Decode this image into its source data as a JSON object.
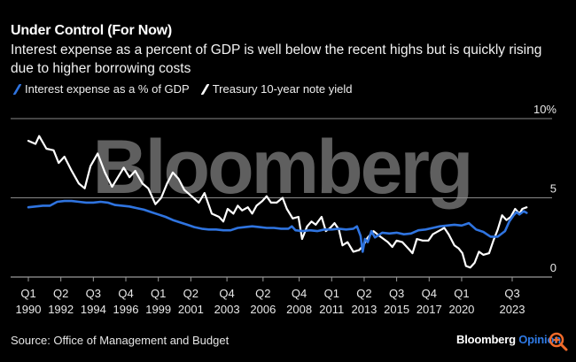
{
  "header": {
    "title": "Under Control (For Now)",
    "subtitle": "Interest expense as a percent of GDP is well below the recent highs but is quickly rising due to higher borrowing costs"
  },
  "legend": [
    {
      "label": "Interest expense as a % of GDP",
      "color": "#2f74e0"
    },
    {
      "label": "Treasury 10-year note yield",
      "color": "#ffffff"
    }
  ],
  "footer": {
    "source": "Source: Office of Management and Budget",
    "brand": "Bloomberg",
    "brand_accent": "Opinion",
    "zoom_icon": "zoom-in-icon"
  },
  "watermark": "Bloomberg",
  "chart_data": {
    "type": "line",
    "title": "Under Control (For Now)",
    "xlabel": "",
    "ylabel": "",
    "ylim": [
      0,
      10
    ],
    "xlim": [
      1990.0,
      2024.75
    ],
    "grid": true,
    "legend_position": "top-left",
    "y_ticks": [
      {
        "value": 0,
        "label": "0"
      },
      {
        "value": 5,
        "label": "5"
      },
      {
        "value": 10,
        "label": "10%"
      }
    ],
    "x_ticks": [
      {
        "value": 1990.0,
        "q": "Q1",
        "year": "1990"
      },
      {
        "value": 1992.25,
        "q": "Q2",
        "year": "1992"
      },
      {
        "value": 1994.5,
        "q": "Q3",
        "year": "1994"
      },
      {
        "value": 1996.75,
        "q": "Q4",
        "year": "1996"
      },
      {
        "value": 1999.0,
        "q": "Q1",
        "year": "1999"
      },
      {
        "value": 2001.25,
        "q": "Q2",
        "year": "2001"
      },
      {
        "value": 2003.75,
        "q": "Q4",
        "year": "2003"
      },
      {
        "value": 2006.25,
        "q": "Q2",
        "year": "2006"
      },
      {
        "value": 2008.75,
        "q": "Q4",
        "year": "2008"
      },
      {
        "value": 2011.0,
        "q": "Q1",
        "year": "2011"
      },
      {
        "value": 2013.25,
        "q": "Q2",
        "year": "2013"
      },
      {
        "value": 2015.5,
        "q": "Q3",
        "year": "2015"
      },
      {
        "value": 2017.75,
        "q": "Q4",
        "year": "2017"
      },
      {
        "value": 2020.0,
        "q": "Q1",
        "year": "2020"
      },
      {
        "value": 2023.5,
        "q": "Q3",
        "year": "2023"
      }
    ],
    "series": [
      {
        "name": "Interest expense as a % of GDP",
        "color": "#2f74e0",
        "points": [
          [
            1990.0,
            4.4
          ],
          [
            1990.5,
            4.45
          ],
          [
            1991.0,
            4.5
          ],
          [
            1991.5,
            4.5
          ],
          [
            1992.0,
            4.75
          ],
          [
            1992.5,
            4.8
          ],
          [
            1993.0,
            4.8
          ],
          [
            1993.5,
            4.75
          ],
          [
            1994.0,
            4.7
          ],
          [
            1994.5,
            4.7
          ],
          [
            1995.0,
            4.75
          ],
          [
            1995.5,
            4.7
          ],
          [
            1996.0,
            4.55
          ],
          [
            1996.5,
            4.5
          ],
          [
            1997.0,
            4.45
          ],
          [
            1997.5,
            4.35
          ],
          [
            1998.0,
            4.25
          ],
          [
            1998.5,
            4.1
          ],
          [
            1999.0,
            3.95
          ],
          [
            1999.5,
            3.8
          ],
          [
            2000.0,
            3.6
          ],
          [
            2000.5,
            3.45
          ],
          [
            2001.0,
            3.3
          ],
          [
            2001.5,
            3.15
          ],
          [
            2002.0,
            3.05
          ],
          [
            2002.5,
            3.0
          ],
          [
            2003.0,
            3.0
          ],
          [
            2003.5,
            2.95
          ],
          [
            2004.0,
            2.95
          ],
          [
            2004.5,
            3.1
          ],
          [
            2005.0,
            3.15
          ],
          [
            2005.5,
            3.2
          ],
          [
            2006.0,
            3.15
          ],
          [
            2006.5,
            3.1
          ],
          [
            2007.0,
            3.1
          ],
          [
            2007.5,
            3.05
          ],
          [
            2008.0,
            3.05
          ],
          [
            2008.25,
            3.2
          ],
          [
            2008.5,
            2.95
          ],
          [
            2009.0,
            2.9
          ],
          [
            2009.5,
            2.95
          ],
          [
            2010.0,
            2.9
          ],
          [
            2010.5,
            3.0
          ],
          [
            2011.0,
            3.0
          ],
          [
            2011.5,
            3.05
          ],
          [
            2012.0,
            3.0
          ],
          [
            2012.5,
            3.05
          ],
          [
            2012.75,
            3.2
          ],
          [
            2013.0,
            2.6
          ],
          [
            2013.15,
            1.6
          ],
          [
            2013.3,
            2.4
          ],
          [
            2013.5,
            2.2
          ],
          [
            2013.75,
            2.9
          ],
          [
            2014.0,
            2.5
          ],
          [
            2014.5,
            2.8
          ],
          [
            2015.0,
            2.75
          ],
          [
            2015.5,
            2.8
          ],
          [
            2016.0,
            2.7
          ],
          [
            2016.5,
            2.75
          ],
          [
            2017.0,
            2.95
          ],
          [
            2017.5,
            3.0
          ],
          [
            2018.0,
            3.1
          ],
          [
            2018.5,
            3.2
          ],
          [
            2019.0,
            3.25
          ],
          [
            2019.5,
            3.3
          ],
          [
            2020.0,
            3.25
          ],
          [
            2020.5,
            3.4
          ],
          [
            2021.0,
            3.0
          ],
          [
            2021.5,
            2.85
          ],
          [
            2022.0,
            2.55
          ],
          [
            2022.5,
            2.55
          ],
          [
            2023.0,
            2.9
          ],
          [
            2023.3,
            3.5
          ],
          [
            2023.6,
            3.9
          ],
          [
            2023.8,
            4.1
          ],
          [
            2024.0,
            3.95
          ],
          [
            2024.3,
            4.15
          ],
          [
            2024.5,
            4.05
          ]
        ]
      },
      {
        "name": "Treasury 10-year note yield",
        "color": "#ffffff",
        "points": [
          [
            1990.0,
            8.6
          ],
          [
            1990.5,
            8.4
          ],
          [
            1990.75,
            8.9
          ],
          [
            1991.25,
            8.1
          ],
          [
            1991.75,
            8.0
          ],
          [
            1992.1,
            7.2
          ],
          [
            1992.5,
            7.6
          ],
          [
            1993.0,
            6.7
          ],
          [
            1993.5,
            5.9
          ],
          [
            1993.9,
            5.6
          ],
          [
            1994.3,
            7.0
          ],
          [
            1994.8,
            7.8
          ],
          [
            1995.3,
            6.6
          ],
          [
            1995.8,
            5.7
          ],
          [
            1996.2,
            6.3
          ],
          [
            1996.6,
            6.9
          ],
          [
            1997.0,
            6.3
          ],
          [
            1997.4,
            6.7
          ],
          [
            1997.9,
            5.9
          ],
          [
            1998.3,
            5.6
          ],
          [
            1998.8,
            4.6
          ],
          [
            1999.2,
            5.0
          ],
          [
            1999.6,
            5.9
          ],
          [
            2000.0,
            6.6
          ],
          [
            2000.4,
            6.2
          ],
          [
            2000.8,
            5.5
          ],
          [
            2001.3,
            5.1
          ],
          [
            2001.8,
            4.7
          ],
          [
            2002.2,
            5.3
          ],
          [
            2002.7,
            4.0
          ],
          [
            2003.2,
            3.8
          ],
          [
            2003.5,
            3.5
          ],
          [
            2003.8,
            4.3
          ],
          [
            2004.2,
            4.0
          ],
          [
            2004.5,
            4.5
          ],
          [
            2004.8,
            4.2
          ],
          [
            2005.2,
            4.4
          ],
          [
            2005.5,
            4.0
          ],
          [
            2005.8,
            4.5
          ],
          [
            2006.2,
            4.8
          ],
          [
            2006.5,
            5.1
          ],
          [
            2006.8,
            4.7
          ],
          [
            2007.2,
            4.7
          ],
          [
            2007.6,
            5.0
          ],
          [
            2007.9,
            4.3
          ],
          [
            2008.3,
            3.7
          ],
          [
            2008.7,
            3.8
          ],
          [
            2008.95,
            2.4
          ],
          [
            2009.3,
            3.2
          ],
          [
            2009.6,
            3.5
          ],
          [
            2009.9,
            3.3
          ],
          [
            2010.3,
            3.8
          ],
          [
            2010.6,
            2.9
          ],
          [
            2010.9,
            3.1
          ],
          [
            2011.2,
            3.4
          ],
          [
            2011.5,
            3.0
          ],
          [
            2011.75,
            2.0
          ],
          [
            2012.1,
            2.2
          ],
          [
            2012.5,
            1.6
          ],
          [
            2012.9,
            1.7
          ],
          [
            2013.2,
            2.0
          ],
          [
            2013.5,
            2.5
          ],
          [
            2013.9,
            2.9
          ],
          [
            2014.3,
            2.6
          ],
          [
            2014.6,
            2.4
          ],
          [
            2014.9,
            2.2
          ],
          [
            2015.2,
            1.9
          ],
          [
            2015.5,
            2.3
          ],
          [
            2015.9,
            2.2
          ],
          [
            2016.3,
            1.8
          ],
          [
            2016.6,
            1.5
          ],
          [
            2016.9,
            2.4
          ],
          [
            2017.3,
            2.3
          ],
          [
            2017.7,
            2.3
          ],
          [
            2018.0,
            2.7
          ],
          [
            2018.4,
            2.9
          ],
          [
            2018.8,
            3.1
          ],
          [
            2019.1,
            2.7
          ],
          [
            2019.5,
            2.0
          ],
          [
            2019.8,
            1.8
          ],
          [
            2020.05,
            1.5
          ],
          [
            2020.3,
            0.7
          ],
          [
            2020.6,
            0.6
          ],
          [
            2020.9,
            0.9
          ],
          [
            2021.2,
            1.6
          ],
          [
            2021.5,
            1.4
          ],
          [
            2021.9,
            1.5
          ],
          [
            2022.2,
            2.3
          ],
          [
            2022.5,
            3.0
          ],
          [
            2022.8,
            3.9
          ],
          [
            2023.1,
            3.6
          ],
          [
            2023.4,
            3.8
          ],
          [
            2023.7,
            4.3
          ],
          [
            2024.0,
            4.0
          ],
          [
            2024.2,
            4.3
          ],
          [
            2024.5,
            4.4
          ]
        ]
      }
    ]
  }
}
